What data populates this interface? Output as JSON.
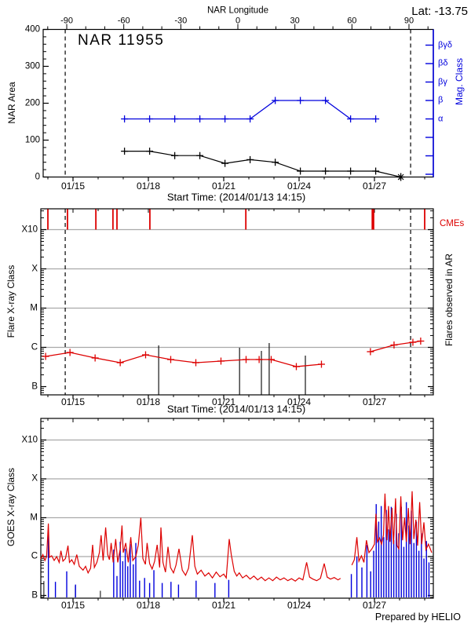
{
  "header": {
    "lat_label": "Lat: -13.75"
  },
  "footer": {
    "credit": "Prepared by HELIO"
  },
  "colors": {
    "red": "#dd0101",
    "blue": "#0000dd",
    "grid_gray": "#a9a9a9",
    "black": "#000000",
    "background": "#ffffff"
  },
  "chart_data": [
    {
      "id": "nar-area-panel",
      "type": "line",
      "title": "NAR 11955",
      "ylabel": "NAR Area",
      "xlabel": "Start Time: (2014/01/13 14:15)",
      "ylim": [
        0,
        400
      ],
      "yticks": [
        0,
        100,
        200,
        300,
        400
      ],
      "ytick_labels": [
        "0",
        "100",
        "200",
        "300",
        "400"
      ],
      "xticks": {
        "days": [
          15,
          18,
          21,
          24,
          27
        ],
        "labels": [
          "01/15",
          "01/18",
          "01/21",
          "01/24",
          "01/27"
        ]
      },
      "top_axis": {
        "label": "NAR Longitude",
        "ticks": [
          -90,
          -60,
          -30,
          0,
          30,
          60,
          90
        ],
        "tick_labels": [
          "-90",
          "-60",
          "-30",
          "0",
          "30",
          "60",
          "90"
        ],
        "minor_step": 10
      },
      "right_axis": {
        "label": "Mag. Class",
        "tick_labels": [
          "βγδ",
          "βδ",
          "βγ",
          "β",
          "α",
          "",
          "",
          ""
        ]
      },
      "limb_crossing_days": [
        14.69,
        28.44
      ],
      "series": [
        {
          "name": "area",
          "color": "black",
          "marker": "plus",
          "days": [
            17.05,
            18.05,
            19.05,
            20.05,
            21.05,
            22.05,
            23.05,
            24.05,
            25.05,
            26.05,
            27.05
          ],
          "values": [
            70,
            70,
            58,
            58,
            37,
            47,
            40,
            16,
            16,
            16,
            16
          ],
          "end_point": {
            "day": 28.05,
            "value": 0,
            "marker": "star"
          }
        },
        {
          "name": "mag-class",
          "color": "blue",
          "marker": "plus",
          "days": [
            17.05,
            18.05,
            19.05,
            20.05,
            21.05,
            22.05,
            23.05,
            24.05,
            25.05,
            26.05,
            27.05
          ],
          "classes": [
            "α",
            "α",
            "α",
            "α",
            "α",
            "α",
            "β",
            "β",
            "β",
            "α",
            "α"
          ]
        }
      ]
    },
    {
      "id": "flare-panel",
      "type": "line",
      "ylabel": "Flare X-ray Class",
      "xlabel": "Start Time: (2014/01/13 14:15)",
      "ytick_labels": [
        "B",
        "C",
        "M",
        "X",
        "X10"
      ],
      "level_scale_note": "level 0=B, 1=C, 2=M, 3=X, 4=X10 (log decades)",
      "right_label": "Flares observed in AR",
      "cme_label": "CMEs",
      "cme_days": [
        14.0,
        14.78,
        15.91,
        16.59,
        16.75,
        18.06,
        21.88,
        26.94,
        29.0
      ],
      "cme_wide_index": 7,
      "flare_lines": {
        "days": [
          18.41,
          21.63,
          22.5,
          22.81,
          24.25
        ],
        "top_levels": [
          1.05,
          0.99,
          0.91,
          1.11,
          0.79
        ]
      },
      "limb_crossing_days": [
        14.69,
        28.44
      ],
      "xticks": {
        "days": [
          15,
          18,
          21,
          24,
          27
        ],
        "labels": [
          "01/15",
          "01/18",
          "01/21",
          "01/24",
          "01/27"
        ]
      },
      "flare_index_segments": [
        {
          "days": [
            13.91,
            14.88,
            15.88,
            16.88,
            17.89,
            18.89,
            19.89,
            20.89,
            21.89,
            22.41,
            22.89,
            23.89,
            24.89
          ],
          "levels": [
            0.77,
            0.87,
            0.73,
            0.61,
            0.81,
            0.69,
            0.61,
            0.65,
            0.69,
            0.69,
            0.69,
            0.51,
            0.57
          ]
        },
        {
          "days": [
            26.84,
            27.78,
            28.53,
            28.84
          ],
          "levels": [
            0.89,
            1.06,
            1.13,
            1.16
          ]
        }
      ]
    },
    {
      "id": "goes-panel",
      "type": "line",
      "ylabel": "GOES X-ray Class",
      "ytick_labels": [
        "B",
        "C",
        "M",
        "X",
        "X10"
      ],
      "level_scale_note": "level 0=B, 1=C, 2=M, 3=X, 4=X10 (log decades)",
      "xticks": {
        "days": [
          15,
          18,
          21,
          24,
          27
        ],
        "labels": [
          "01/15",
          "01/18",
          "01/21",
          "01/24",
          "01/27"
        ]
      },
      "red_curve_segments": [
        [
          [
            13.72,
            0.94
          ],
          [
            13.8,
            1.05
          ],
          [
            13.88,
            0.9
          ],
          [
            13.95,
            1.0
          ],
          [
            14.02,
            1.85
          ],
          [
            14.06,
            0.98
          ],
          [
            14.15,
            1.02
          ],
          [
            14.25,
            0.9
          ],
          [
            14.35,
            1.0
          ],
          [
            14.45,
            0.85
          ],
          [
            14.52,
            1.15
          ],
          [
            14.6,
            0.88
          ],
          [
            14.7,
            0.95
          ],
          [
            14.8,
            1.28
          ],
          [
            14.86,
            0.85
          ],
          [
            14.95,
            0.92
          ],
          [
            15.05,
            0.8
          ],
          [
            15.15,
            1.05
          ],
          [
            15.25,
            0.75
          ],
          [
            15.4,
            0.65
          ],
          [
            15.5,
            0.75
          ],
          [
            15.6,
            0.58
          ],
          [
            15.7,
            0.7
          ],
          [
            15.78,
            1.3
          ],
          [
            15.85,
            0.72
          ],
          [
            15.95,
            0.85
          ],
          [
            16.05,
            1.1
          ],
          [
            16.12,
            1.55
          ],
          [
            16.2,
            0.9
          ],
          [
            16.3,
            1.75
          ],
          [
            16.38,
            1.05
          ],
          [
            16.45,
            0.92
          ],
          [
            16.52,
            1.35
          ],
          [
            16.6,
            0.85
          ],
          [
            16.7,
            1.45
          ],
          [
            16.78,
            0.85
          ],
          [
            16.88,
            1.2
          ],
          [
            16.95,
            1.8
          ],
          [
            17.0,
            1.1
          ],
          [
            17.1,
            1.35
          ],
          [
            17.2,
            0.85
          ],
          [
            17.3,
            1.5
          ],
          [
            17.38,
            0.9
          ],
          [
            17.5,
            1.0
          ],
          [
            17.6,
            1.3
          ],
          [
            17.7,
            2.0
          ],
          [
            17.78,
            0.95
          ],
          [
            17.88,
            0.8
          ],
          [
            17.95,
            1.35
          ],
          [
            18.05,
            0.82
          ],
          [
            18.15,
            0.68
          ],
          [
            18.25,
            0.88
          ],
          [
            18.35,
            1.3
          ],
          [
            18.45,
            0.72
          ],
          [
            18.5,
            1.75
          ],
          [
            18.58,
            0.85
          ],
          [
            18.68,
            0.6
          ],
          [
            18.78,
            1.25
          ],
          [
            18.88,
            0.72
          ],
          [
            19.0,
            0.58
          ],
          [
            19.1,
            0.78
          ],
          [
            19.22,
            1.2
          ],
          [
            19.35,
            0.65
          ],
          [
            19.48,
            0.52
          ],
          [
            19.6,
            0.7
          ],
          [
            19.75,
            1.55
          ],
          [
            19.85,
            0.75
          ],
          [
            19.95,
            0.55
          ],
          [
            20.1,
            0.65
          ],
          [
            20.25,
            0.5
          ],
          [
            20.4,
            0.58
          ],
          [
            20.55,
            0.45
          ],
          [
            20.7,
            0.6
          ],
          [
            20.85,
            0.48
          ],
          [
            21.0,
            0.55
          ],
          [
            21.1,
            0.45
          ],
          [
            21.22,
            1.45
          ],
          [
            21.3,
            1.05
          ],
          [
            21.42,
            0.62
          ],
          [
            21.52,
            0.5
          ],
          [
            21.62,
            0.58
          ],
          [
            21.75,
            0.45
          ],
          [
            21.9,
            0.52
          ],
          [
            22.05,
            0.42
          ],
          [
            22.2,
            0.5
          ],
          [
            22.35,
            0.4
          ],
          [
            22.5,
            0.47
          ],
          [
            22.65,
            0.38
          ],
          [
            22.8,
            0.45
          ],
          [
            22.95,
            0.38
          ],
          [
            23.1,
            0.47
          ],
          [
            23.25,
            0.4
          ],
          [
            23.4,
            0.45
          ],
          [
            23.55,
            0.38
          ],
          [
            23.7,
            0.43
          ],
          [
            23.85,
            0.37
          ],
          [
            24.0,
            0.45
          ],
          [
            24.15,
            0.4
          ],
          [
            24.3,
            0.85
          ],
          [
            24.42,
            0.47
          ],
          [
            24.55,
            0.42
          ],
          [
            24.7,
            0.38
          ],
          [
            24.85,
            0.44
          ],
          [
            25.0,
            0.82
          ],
          [
            25.12,
            0.47
          ],
          [
            25.25,
            0.42
          ],
          [
            25.4,
            0.46
          ],
          [
            25.55,
            0.4
          ],
          [
            25.65,
            0.44
          ]
        ],
        [
          [
            26.1,
            0.78
          ],
          [
            26.2,
            0.92
          ],
          [
            26.3,
            1.5
          ],
          [
            26.38,
            0.88
          ],
          [
            26.48,
            1.02
          ],
          [
            26.58,
            0.85
          ],
          [
            26.68,
            1.42
          ],
          [
            26.78,
            1.1
          ],
          [
            26.9,
            1.2
          ],
          [
            27.0,
            1.32
          ],
          [
            27.06,
            2.1
          ],
          [
            27.12,
            1.38
          ],
          [
            27.2,
            1.48
          ],
          [
            27.28,
            1.32
          ],
          [
            27.36,
            1.55
          ],
          [
            27.42,
            2.62
          ],
          [
            27.5,
            1.42
          ],
          [
            27.56,
            2.3
          ],
          [
            27.62,
            1.38
          ],
          [
            27.7,
            2.25
          ],
          [
            27.76,
            1.32
          ],
          [
            27.84,
            2.5
          ],
          [
            27.9,
            1.28
          ],
          [
            27.97,
            1.2
          ],
          [
            28.05,
            2.55
          ],
          [
            28.12,
            1.42
          ],
          [
            28.2,
            2.0
          ],
          [
            28.27,
            1.38
          ],
          [
            28.35,
            2.25
          ],
          [
            28.42,
            1.32
          ],
          [
            28.5,
            2.68
          ],
          [
            28.57,
            1.45
          ],
          [
            28.65,
            1.95
          ],
          [
            28.72,
            1.28
          ],
          [
            28.8,
            2.4
          ],
          [
            28.88,
            1.32
          ],
          [
            28.97,
            1.88
          ],
          [
            29.05,
            1.18
          ],
          [
            29.15,
            1.32
          ],
          [
            29.28,
            1.1
          ]
        ]
      ],
      "blue_spikes": [
        [
          14.02,
          1.6
        ],
        [
          14.3,
          0.35
        ],
        [
          14.75,
          0.62
        ],
        [
          15.1,
          0.28
        ],
        [
          16.62,
          1.18
        ],
        [
          16.75,
          0.5
        ],
        [
          16.88,
          1.38
        ],
        [
          16.98,
          0.88
        ],
        [
          17.08,
          1.2
        ],
        [
          17.18,
          0.75
        ],
        [
          17.28,
          1.32
        ],
        [
          17.4,
          0.8
        ],
        [
          17.5,
          1.35
        ],
        [
          17.65,
          0.38
        ],
        [
          17.85,
          0.45
        ],
        [
          18.05,
          0.32
        ],
        [
          18.22,
          0.65
        ],
        [
          18.55,
          0.32
        ],
        [
          18.9,
          0.35
        ],
        [
          19.2,
          0.28
        ],
        [
          19.9,
          0.38
        ],
        [
          20.65,
          0.32
        ],
        [
          21.2,
          0.4
        ],
        [
          26.08,
          0.55
        ],
        [
          26.3,
          1.0
        ],
        [
          26.5,
          0.72
        ],
        [
          26.7,
          1.3
        ],
        [
          26.85,
          0.62
        ],
        [
          26.97,
          1.15
        ],
        [
          27.07,
          2.35
        ],
        [
          27.17,
          1.9
        ],
        [
          27.27,
          2.3
        ],
        [
          27.37,
          1.5
        ],
        [
          27.47,
          2.2
        ],
        [
          27.57,
          1.7
        ],
        [
          27.67,
          2.28
        ],
        [
          27.77,
          1.42
        ],
        [
          27.87,
          2.1
        ],
        [
          27.97,
          1.6
        ],
        [
          28.07,
          2.28
        ],
        [
          28.17,
          1.25
        ],
        [
          28.27,
          2.4
        ],
        [
          28.37,
          1.8
        ],
        [
          28.47,
          2.18
        ],
        [
          28.57,
          1.35
        ],
        [
          28.67,
          1.9
        ],
        [
          28.77,
          1.15
        ],
        [
          28.87,
          1.6
        ],
        [
          28.97,
          0.95
        ],
        [
          29.07,
          1.4
        ],
        [
          29.17,
          0.85
        ]
      ],
      "black_spikes": [
        [
          13.84,
          0.37
        ],
        [
          15.09,
          0.25
        ],
        [
          16.09,
          0.12
        ]
      ]
    }
  ]
}
